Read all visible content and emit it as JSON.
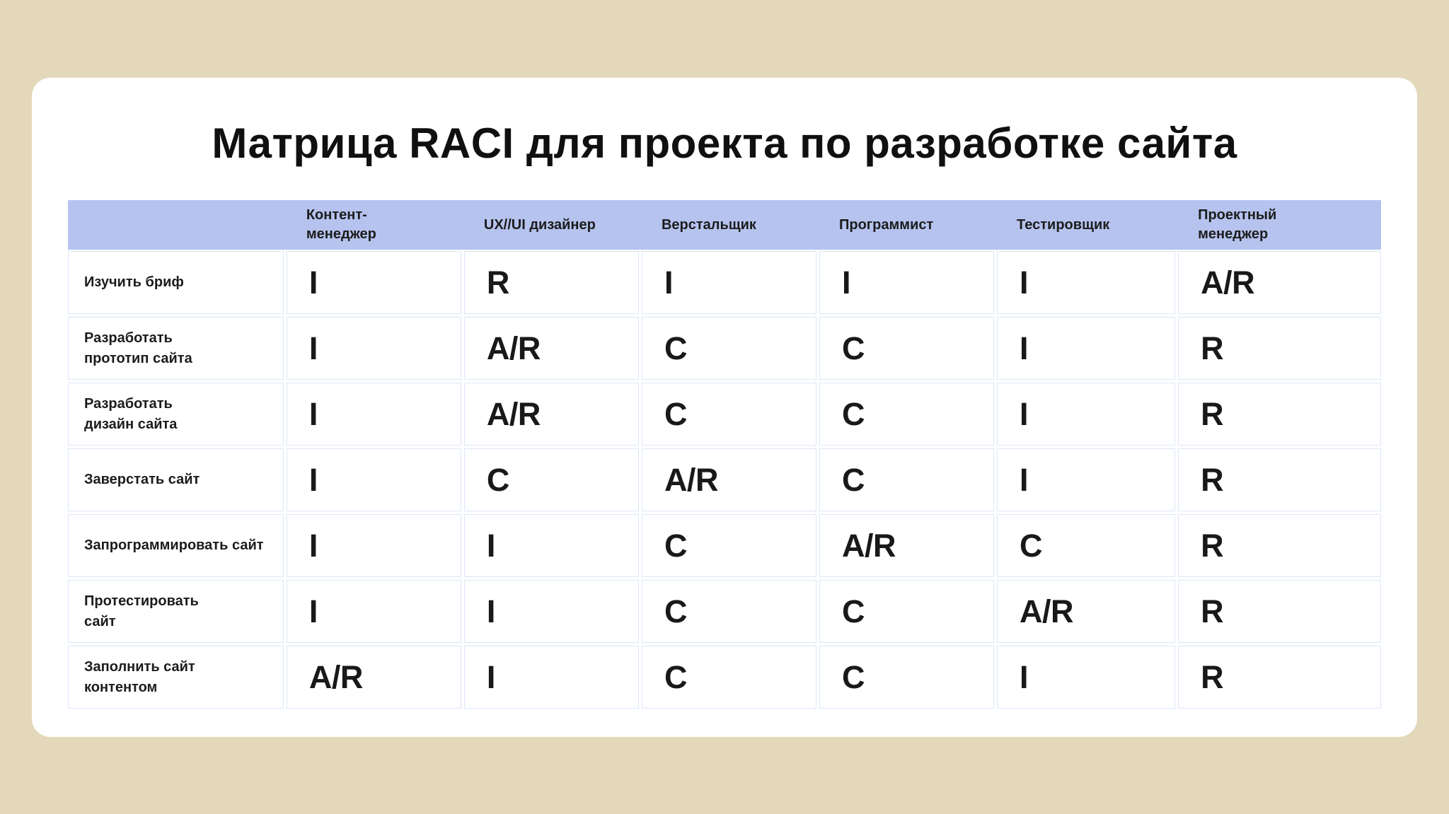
{
  "page": {
    "background_color": "#e4d8bb",
    "card_color": "#ffffff",
    "header_color": "#b5c3ee",
    "border_color": "#dce6f8"
  },
  "title": "Матрица RACI для проекта по разработке сайта",
  "chart_data": {
    "type": "table",
    "title": "Матрица RACI для проекта по разработке сайта",
    "columns": [
      "",
      "Контент-менеджер",
      "UX//UI дизайнер",
      "Верстальщик",
      "Программист",
      "Тестировщик",
      "Проектный менеджер"
    ],
    "rows": [
      [
        "Изучить бриф",
        "I",
        "R",
        "I",
        "I",
        "I",
        "A/R"
      ],
      [
        "Разработать прототип сайта",
        "I",
        "A/R",
        "C",
        "C",
        "I",
        "R"
      ],
      [
        "Разработать дизайн сайта",
        "I",
        "A/R",
        "C",
        "C",
        "I",
        "R"
      ],
      [
        "Заверстать сайт",
        "I",
        "C",
        "A/R",
        "C",
        "I",
        "R"
      ],
      [
        "Запрограммировать сайт",
        "I",
        "I",
        "C",
        "A/R",
        "C",
        "R"
      ],
      [
        "Протестировать сайт",
        "I",
        "I",
        "C",
        "C",
        "A/R",
        "R"
      ],
      [
        "Заполнить сайт контентом",
        "A/R",
        "I",
        "C",
        "C",
        "I",
        "R"
      ]
    ]
  },
  "table": {
    "header": {
      "task": "",
      "c1": "Контент-\nменеджер",
      "c2": "UX//UI дизайнер",
      "c3": "Верстальщик",
      "c4": "Программист",
      "c5": "Тестировщик",
      "c6": "Проектный\nменеджер"
    },
    "rows": [
      {
        "task": "Изучить бриф",
        "values": [
          "I",
          "R",
          "I",
          "I",
          "I",
          "A/R"
        ]
      },
      {
        "task": "Разработать\nпрототип сайта",
        "values": [
          "I",
          "A/R",
          "C",
          "C",
          "I",
          "R"
        ]
      },
      {
        "task": "Разработать\nдизайн сайта",
        "values": [
          "I",
          "A/R",
          "C",
          "C",
          "I",
          "R"
        ]
      },
      {
        "task": "Заверстать сайт",
        "values": [
          "I",
          "C",
          "A/R",
          "C",
          "I",
          "R"
        ]
      },
      {
        "task": "Запрограммировать сайт",
        "values": [
          "I",
          "I",
          "C",
          "A/R",
          "C",
          "R"
        ]
      },
      {
        "task": "Протестировать\nсайт",
        "values": [
          "I",
          "I",
          "C",
          "C",
          "A/R",
          "R"
        ]
      },
      {
        "task": "Заполнить сайт\nконтентом",
        "values": [
          "A/R",
          "I",
          "C",
          "C",
          "I",
          "R"
        ]
      }
    ]
  }
}
